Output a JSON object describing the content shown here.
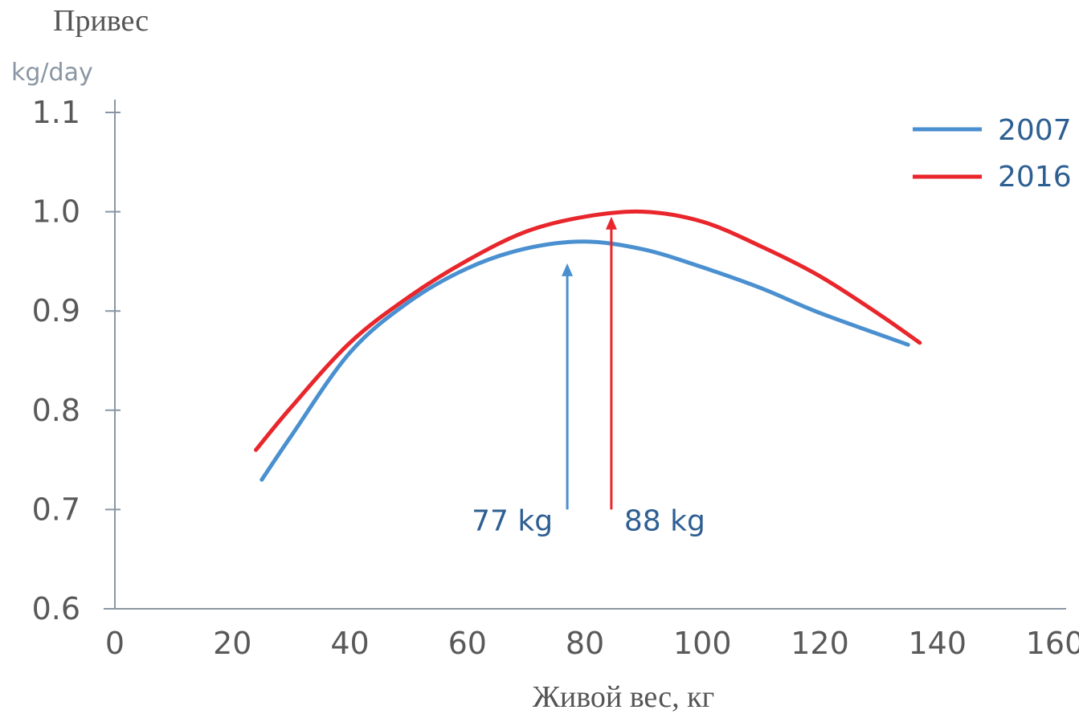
{
  "chart_data": {
    "type": "line",
    "ylabel": "Привес",
    "yunit": "kg/day",
    "xlabel": "Живой вес, кг",
    "xlim": [
      0,
      160
    ],
    "ylim": [
      0.6,
      1.1
    ],
    "x_ticks": [
      "0",
      "20",
      "40",
      "60",
      "80",
      "100",
      "120",
      "140",
      "160"
    ],
    "y_ticks": [
      "0.6",
      "0.7",
      "0.8",
      "0.9",
      "1.0",
      "1.1"
    ],
    "legend_position": "top-right",
    "series": [
      {
        "name": "2007",
        "color": "#4a90d0",
        "points": [
          [
            25,
            0.73
          ],
          [
            30,
            0.774
          ],
          [
            40,
            0.858
          ],
          [
            50,
            0.909
          ],
          [
            60,
            0.943
          ],
          [
            70,
            0.963
          ],
          [
            80,
            0.97
          ],
          [
            90,
            0.962
          ],
          [
            100,
            0.944
          ],
          [
            110,
            0.923
          ],
          [
            120,
            0.898
          ],
          [
            135,
            0.866
          ]
        ]
      },
      {
        "name": "2016",
        "color": "#e8262b",
        "points": [
          [
            24,
            0.76
          ],
          [
            30,
            0.803
          ],
          [
            40,
            0.868
          ],
          [
            50,
            0.914
          ],
          [
            60,
            0.951
          ],
          [
            70,
            0.98
          ],
          [
            80,
            0.995
          ],
          [
            90,
            1.0
          ],
          [
            100,
            0.99
          ],
          [
            110,
            0.965
          ],
          [
            120,
            0.935
          ],
          [
            130,
            0.897
          ],
          [
            137,
            0.868
          ]
        ]
      }
    ],
    "annotations": [
      {
        "label": "77 kg",
        "x": 77,
        "y_from": 0.7,
        "y_to": 0.948,
        "color": "#4a90d0",
        "text_color": "#2e5f92"
      },
      {
        "label": "88 kg",
        "x": 84.5,
        "y_from": 0.7,
        "y_to": 0.995,
        "color": "#e8262b",
        "text_color": "#2e5f92"
      }
    ]
  }
}
